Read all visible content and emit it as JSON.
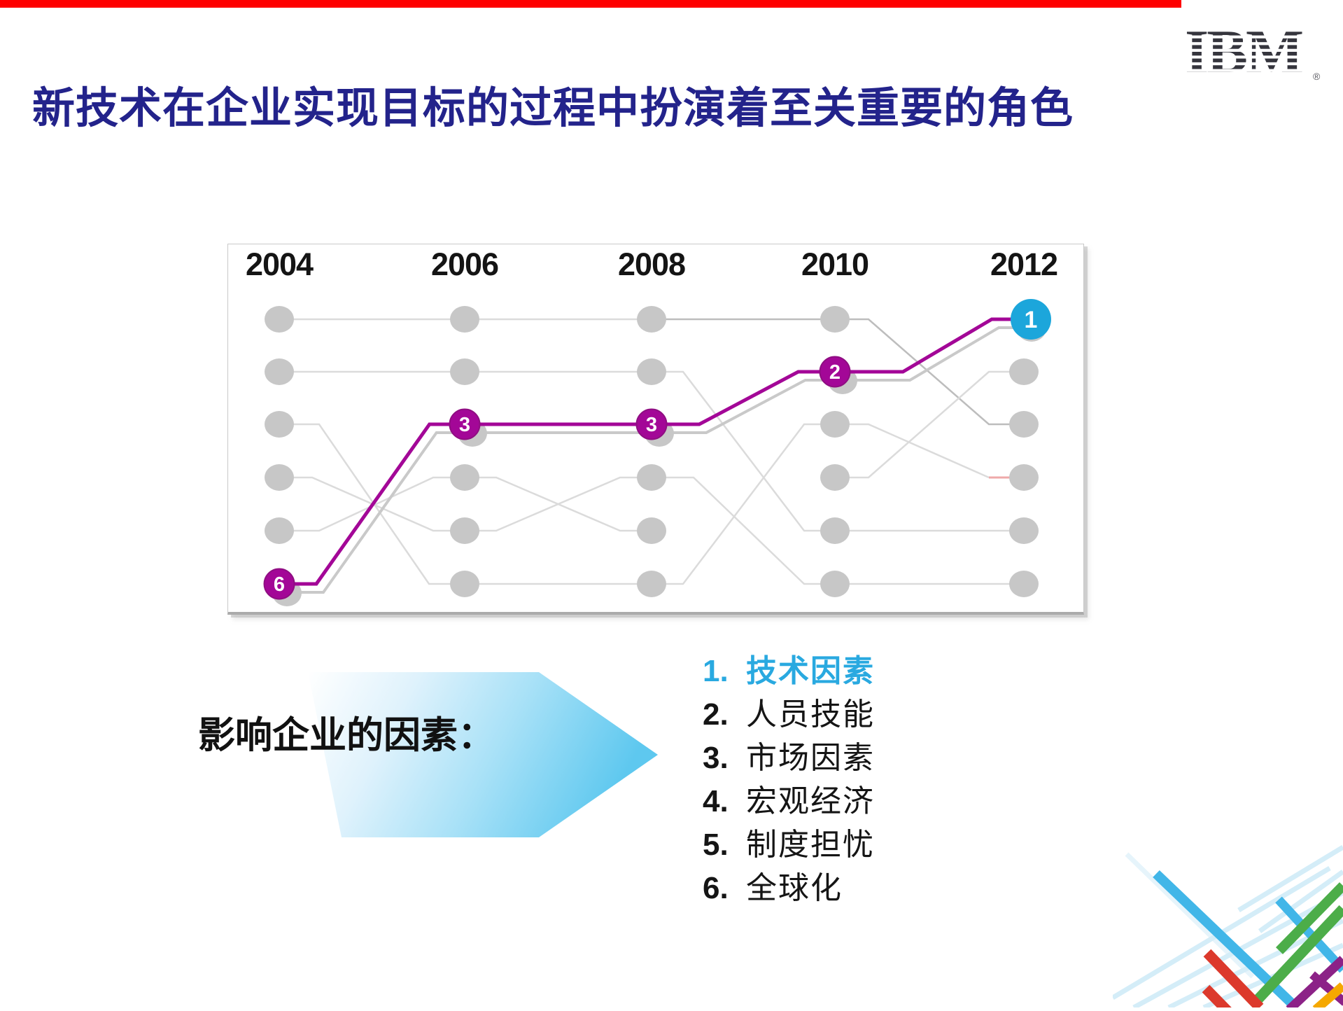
{
  "page": {
    "background": "#ffffff"
  },
  "top_bar": {
    "color": "#fe0000"
  },
  "brand": {
    "logo_text": "IBM",
    "registered_mark": "®",
    "color": "#35353d"
  },
  "title": {
    "text": "新技术在企业实现目标的过程中扮演着至关重要的角色",
    "color": "#23238b"
  },
  "chart_data": {
    "type": "bump",
    "title": "",
    "years": [
      "2004",
      "2006",
      "2008",
      "2010",
      "2012"
    ],
    "rows": 6,
    "highlighted_series": {
      "name": "技术因素",
      "line_color": "#a30797",
      "marker_color": "#a30797",
      "end_marker_color": "#1ca6db",
      "ranks_by_year": {
        "2004": 6,
        "2006": 3,
        "2008": 3,
        "2010": 2,
        "2012": 1
      },
      "marker_labels": [
        "6",
        "3",
        "3",
        "2",
        "1"
      ]
    },
    "other_series": {
      "color": "#dbdbdb",
      "darker_color": "#bdbdbd",
      "pink_segment_color": "#efa9a9",
      "note": "five unlabeled gray rank lines for the other factors"
    },
    "dot_color": "#c7c7c7",
    "year_label_color": "#141414",
    "legend_position": "none",
    "grid": false
  },
  "callout": {
    "label": "影响企业的因素：",
    "arrow_color_start": "#ffffff",
    "arrow_color_end": "#5ec8ef"
  },
  "factors_list": {
    "highlight_color": "#29a9e0",
    "items": [
      {
        "num": "1.",
        "label": "技术因素",
        "highlight": true
      },
      {
        "num": "2.",
        "label": "人员技能",
        "highlight": false
      },
      {
        "num": "3.",
        "label": "市场因素",
        "highlight": false
      },
      {
        "num": "4.",
        "label": "宏观经济",
        "highlight": false
      },
      {
        "num": "5.",
        "label": "制度担忧",
        "highlight": false
      },
      {
        "num": "6.",
        "label": "全球化",
        "highlight": false
      }
    ]
  }
}
